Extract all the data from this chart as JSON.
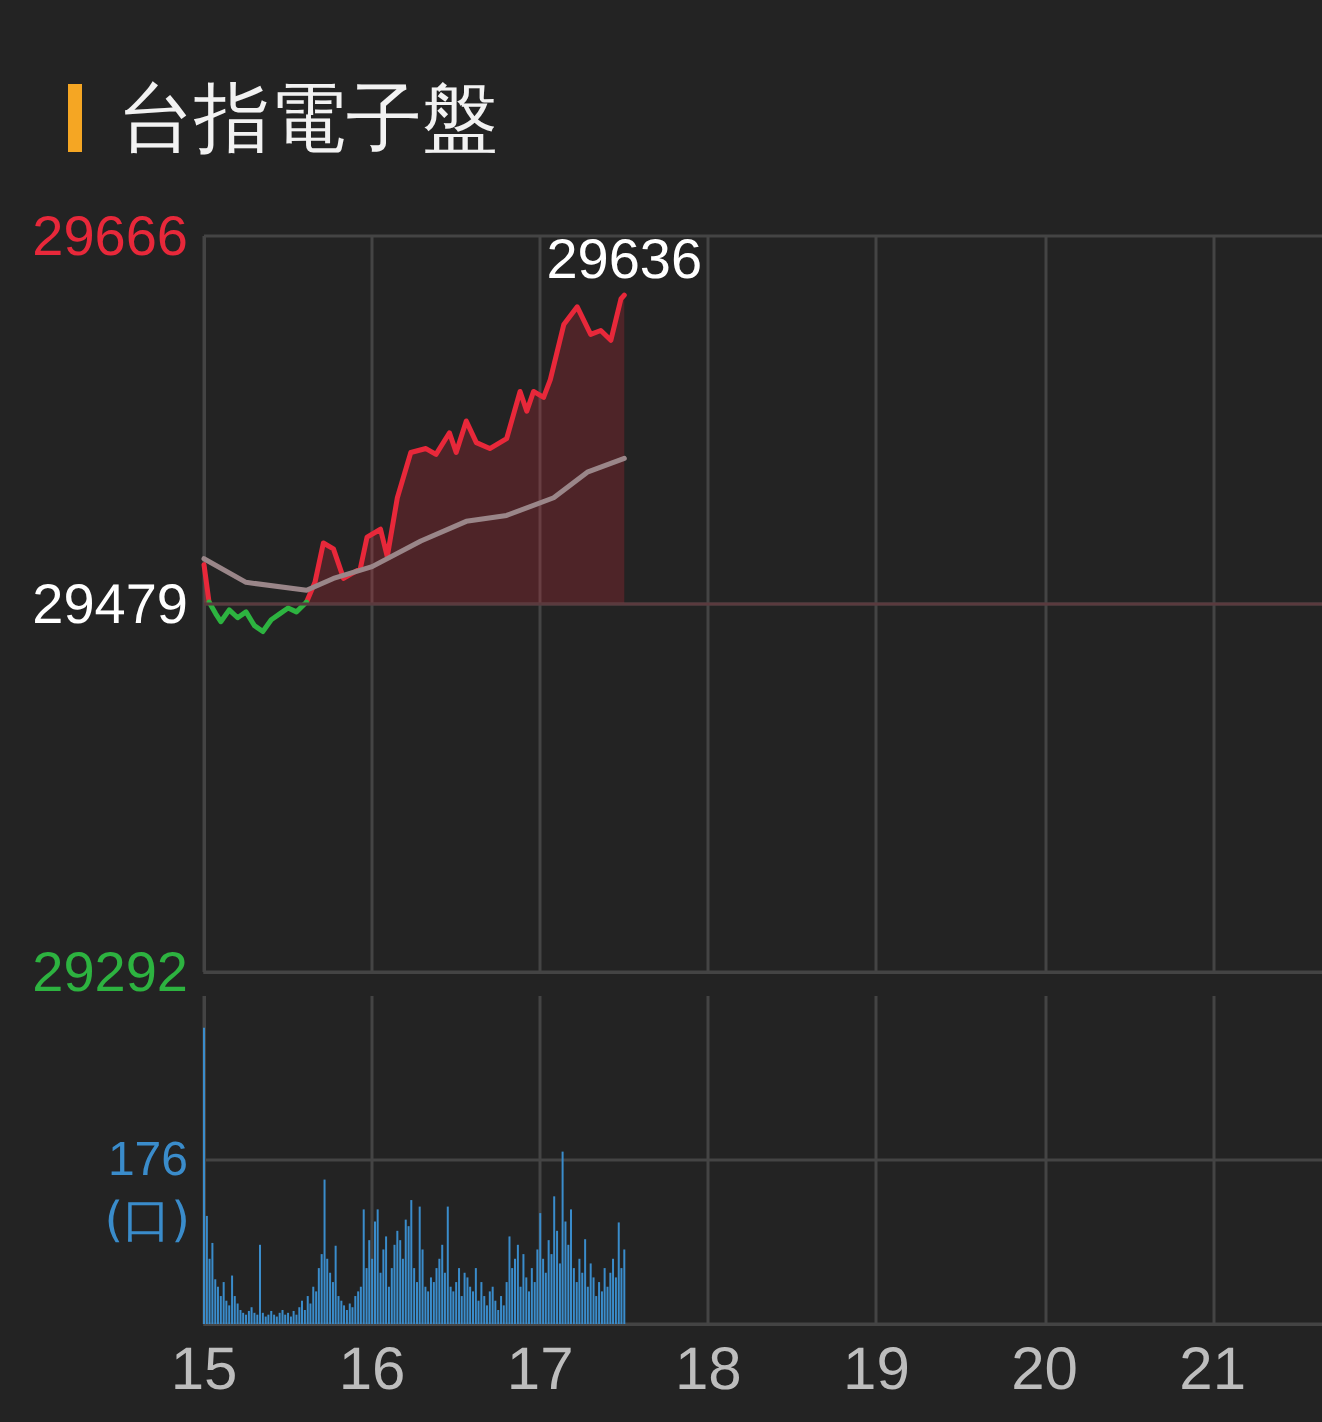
{
  "chart_data": [
    {
      "type": "area",
      "title": "台指電子盤",
      "xlim": [
        15,
        21.65
      ],
      "xticks": [
        15,
        16,
        17,
        18,
        19,
        20,
        21
      ],
      "ylim": [
        29292,
        29666
      ],
      "yticks": [
        29292,
        29479,
        29666
      ],
      "grid": true,
      "tick_labels": "y",
      "ref_lines": [
        {
          "axis": "y",
          "value": 29479,
          "color": "#5a3a3e"
        }
      ],
      "x": [
        15.0,
        15.03,
        15.07,
        15.1,
        15.15,
        15.2,
        15.25,
        15.3,
        15.35,
        15.4,
        15.45,
        15.5,
        15.55,
        15.61,
        15.66,
        15.71,
        15.77,
        15.83,
        15.93,
        15.97,
        16.05,
        16.09,
        16.15,
        16.23,
        16.32,
        16.38,
        16.46,
        16.5,
        16.56,
        16.62,
        16.7,
        16.8,
        16.84,
        16.88,
        16.92,
        16.96,
        17.02,
        17.06,
        17.14,
        17.22,
        17.3,
        17.36,
        17.42,
        17.48,
        17.5
      ],
      "series": [
        {
          "color": "#e8283a",
          "values": [
            29499,
            29480,
            null,
            null,
            null,
            null,
            null,
            null,
            null,
            null,
            null,
            null,
            null,
            29480,
            29490,
            29510,
            29507,
            29492,
            29497,
            29513,
            29517,
            29503,
            29533,
            29556,
            29558,
            29555,
            29566,
            29556,
            29572,
            29561,
            29558,
            29563,
            29575,
            29587,
            29577,
            29587,
            29584,
            29593,
            29621,
            29630,
            29616,
            29618,
            29613,
            29634,
            29636
          ],
          "value_labels": [
            null,
            null,
            null,
            null,
            null,
            null,
            null,
            null,
            null,
            null,
            null,
            null,
            null,
            null,
            null,
            null,
            null,
            null,
            null,
            null,
            null,
            null,
            null,
            null,
            null,
            null,
            null,
            null,
            null,
            null,
            null,
            null,
            null,
            null,
            null,
            null,
            null,
            null,
            null,
            null,
            null,
            null,
            null,
            null,
            "29636"
          ]
        },
        {
          "type": "line",
          "color": "#2db340",
          "values": [
            null,
            29480,
            29474,
            29470,
            29476,
            29472,
            29475,
            29468,
            29465,
            29471,
            29474,
            29477,
            29475,
            29480,
            null,
            null,
            null,
            null,
            null,
            null,
            null,
            null,
            null,
            null,
            null,
            null,
            null,
            null,
            null,
            null,
            null,
            null,
            null,
            null,
            null,
            null,
            null,
            null,
            null,
            null,
            null,
            null,
            null,
            null,
            null
          ]
        },
        {
          "type": "line",
          "color": "#9a8689",
          "x": [
            15.0,
            15.25,
            15.61,
            15.77,
            16.0,
            16.29,
            16.56,
            16.8,
            17.08,
            17.28,
            17.5
          ],
          "values": [
            29502,
            29490,
            29486,
            29492,
            29498,
            29511,
            29521,
            29524,
            29533,
            29546,
            29553
          ]
        }
      ]
    },
    {
      "type": "bar",
      "ylabel": "(口)",
      "xlim": [
        15,
        21.65
      ],
      "xticks": [
        15,
        16,
        17,
        18,
        19,
        20,
        21
      ],
      "ylim": [
        0,
        352
      ],
      "yticks": [
        {
          "value": 0,
          "label": null
        },
        176
      ],
      "grid": true,
      "x": [
        15,
        15.017,
        15.033,
        15.05,
        15.067,
        15.083,
        15.1,
        15.117,
        15.133,
        15.15,
        15.167,
        15.183,
        15.2,
        15.217,
        15.233,
        15.25,
        15.267,
        15.283,
        15.3,
        15.317,
        15.333,
        15.35,
        15.367,
        15.383,
        15.4,
        15.417,
        15.433,
        15.45,
        15.467,
        15.483,
        15.5,
        15.517,
        15.533,
        15.55,
        15.567,
        15.583,
        15.6,
        15.617,
        15.633,
        15.65,
        15.667,
        15.683,
        15.7,
        15.717,
        15.733,
        15.75,
        15.767,
        15.783,
        15.8,
        15.817,
        15.833,
        15.85,
        15.867,
        15.883,
        15.9,
        15.917,
        15.933,
        15.95,
        15.967,
        15.983,
        16,
        16.017,
        16.033,
        16.05,
        16.067,
        16.083,
        16.1,
        16.117,
        16.133,
        16.15,
        16.167,
        16.183,
        16.2,
        16.217,
        16.233,
        16.25,
        16.267,
        16.283,
        16.3,
        16.317,
        16.333,
        16.35,
        16.367,
        16.383,
        16.4,
        16.417,
        16.433,
        16.45,
        16.467,
        16.483,
        16.5,
        16.517,
        16.533,
        16.55,
        16.567,
        16.583,
        16.6,
        16.617,
        16.633,
        16.65,
        16.667,
        16.683,
        16.7,
        16.717,
        16.733,
        16.75,
        16.767,
        16.783,
        16.8,
        16.817,
        16.833,
        16.85,
        16.867,
        16.883,
        16.9,
        16.917,
        16.933,
        16.95,
        16.967,
        16.983,
        17,
        17.017,
        17.033,
        17.05,
        17.067,
        17.083,
        17.1,
        17.117,
        17.133,
        17.15,
        17.167,
        17.183,
        17.2,
        17.217,
        17.233,
        17.25,
        17.267,
        17.283,
        17.3,
        17.317,
        17.333,
        17.35,
        17.367,
        17.383,
        17.4,
        17.417,
        17.433,
        17.45,
        17.467,
        17.483,
        17.5
      ],
      "series": [
        {
          "color": "#3a8ccb",
          "values": [
            318,
            116,
            70,
            87,
            48,
            40,
            30,
            45,
            25,
            20,
            52,
            30,
            22,
            15,
            12,
            10,
            14,
            18,
            12,
            10,
            85,
            12,
            8,
            10,
            14,
            10,
            8,
            12,
            15,
            10,
            12,
            8,
            14,
            10,
            18,
            25,
            15,
            30,
            22,
            40,
            35,
            60,
            75,
            155,
            70,
            55,
            45,
            84,
            30,
            25,
            20,
            15,
            22,
            18,
            30,
            35,
            40,
            123,
            60,
            90,
            70,
            110,
            123,
            55,
            80,
            94,
            40,
            60,
            85,
            100,
            90,
            70,
            112,
            105,
            133,
            60,
            45,
            126,
            80,
            40,
            35,
            50,
            45,
            60,
            70,
            85,
            55,
            126,
            40,
            35,
            45,
            60,
            30,
            55,
            50,
            40,
            35,
            60,
            25,
            45,
            30,
            20,
            35,
            40,
            25,
            15,
            30,
            20,
            45,
            94,
            60,
            70,
            85,
            40,
            75,
            50,
            35,
            60,
            45,
            80,
            119,
            70,
            55,
            90,
            75,
            137,
            100,
            65,
            185,
            110,
            85,
            123,
            60,
            45,
            70,
            55,
            91,
            40,
            65,
            50,
            30,
            45,
            35,
            60,
            40,
            55,
            70,
            50,
            109,
            60,
            80
          ]
        }
      ]
    }
  ]
}
